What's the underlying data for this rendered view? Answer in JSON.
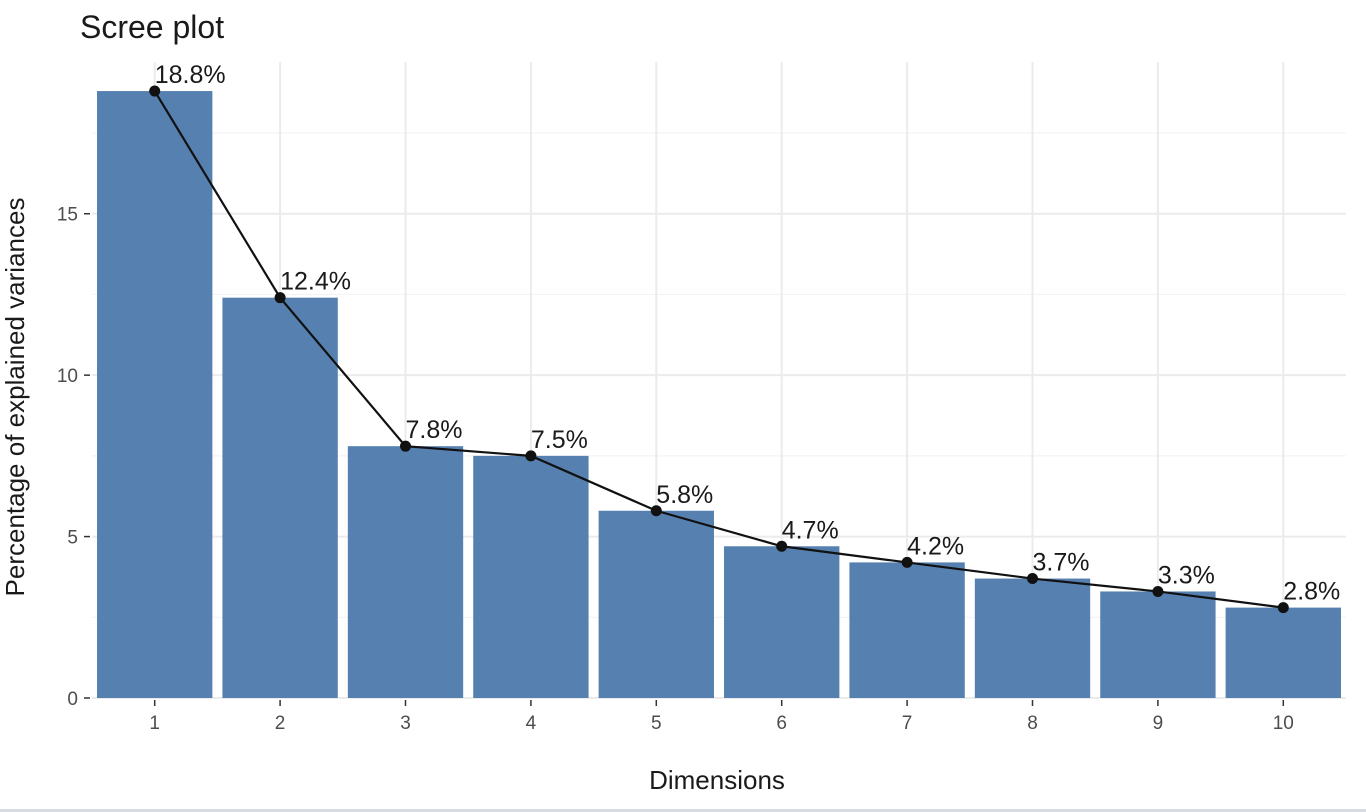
{
  "colors": {
    "bar": "#5580b0",
    "line": "#111111",
    "grid": "#ebebeb"
  },
  "chart_data": {
    "type": "bar",
    "title": "Scree plot",
    "xlabel": "Dimensions",
    "ylabel": "Percentage of explained variances",
    "categories": [
      "1",
      "2",
      "3",
      "4",
      "5",
      "6",
      "7",
      "8",
      "9",
      "10"
    ],
    "values": [
      18.8,
      12.4,
      7.8,
      7.5,
      5.8,
      4.7,
      4.2,
      3.7,
      3.3,
      2.8
    ],
    "labels": [
      "18.8%",
      "12.4%",
      "7.8%",
      "7.5%",
      "5.8%",
      "4.7%",
      "4.2%",
      "3.7%",
      "3.3%",
      "2.8%"
    ],
    "overlay": "line-with-points",
    "ylim": [
      0,
      19.7
    ],
    "yticks": [
      0,
      5,
      10,
      15
    ],
    "ytick_labels": [
      "0",
      "5",
      "10",
      "15"
    ],
    "grid": true,
    "legend": "none"
  }
}
